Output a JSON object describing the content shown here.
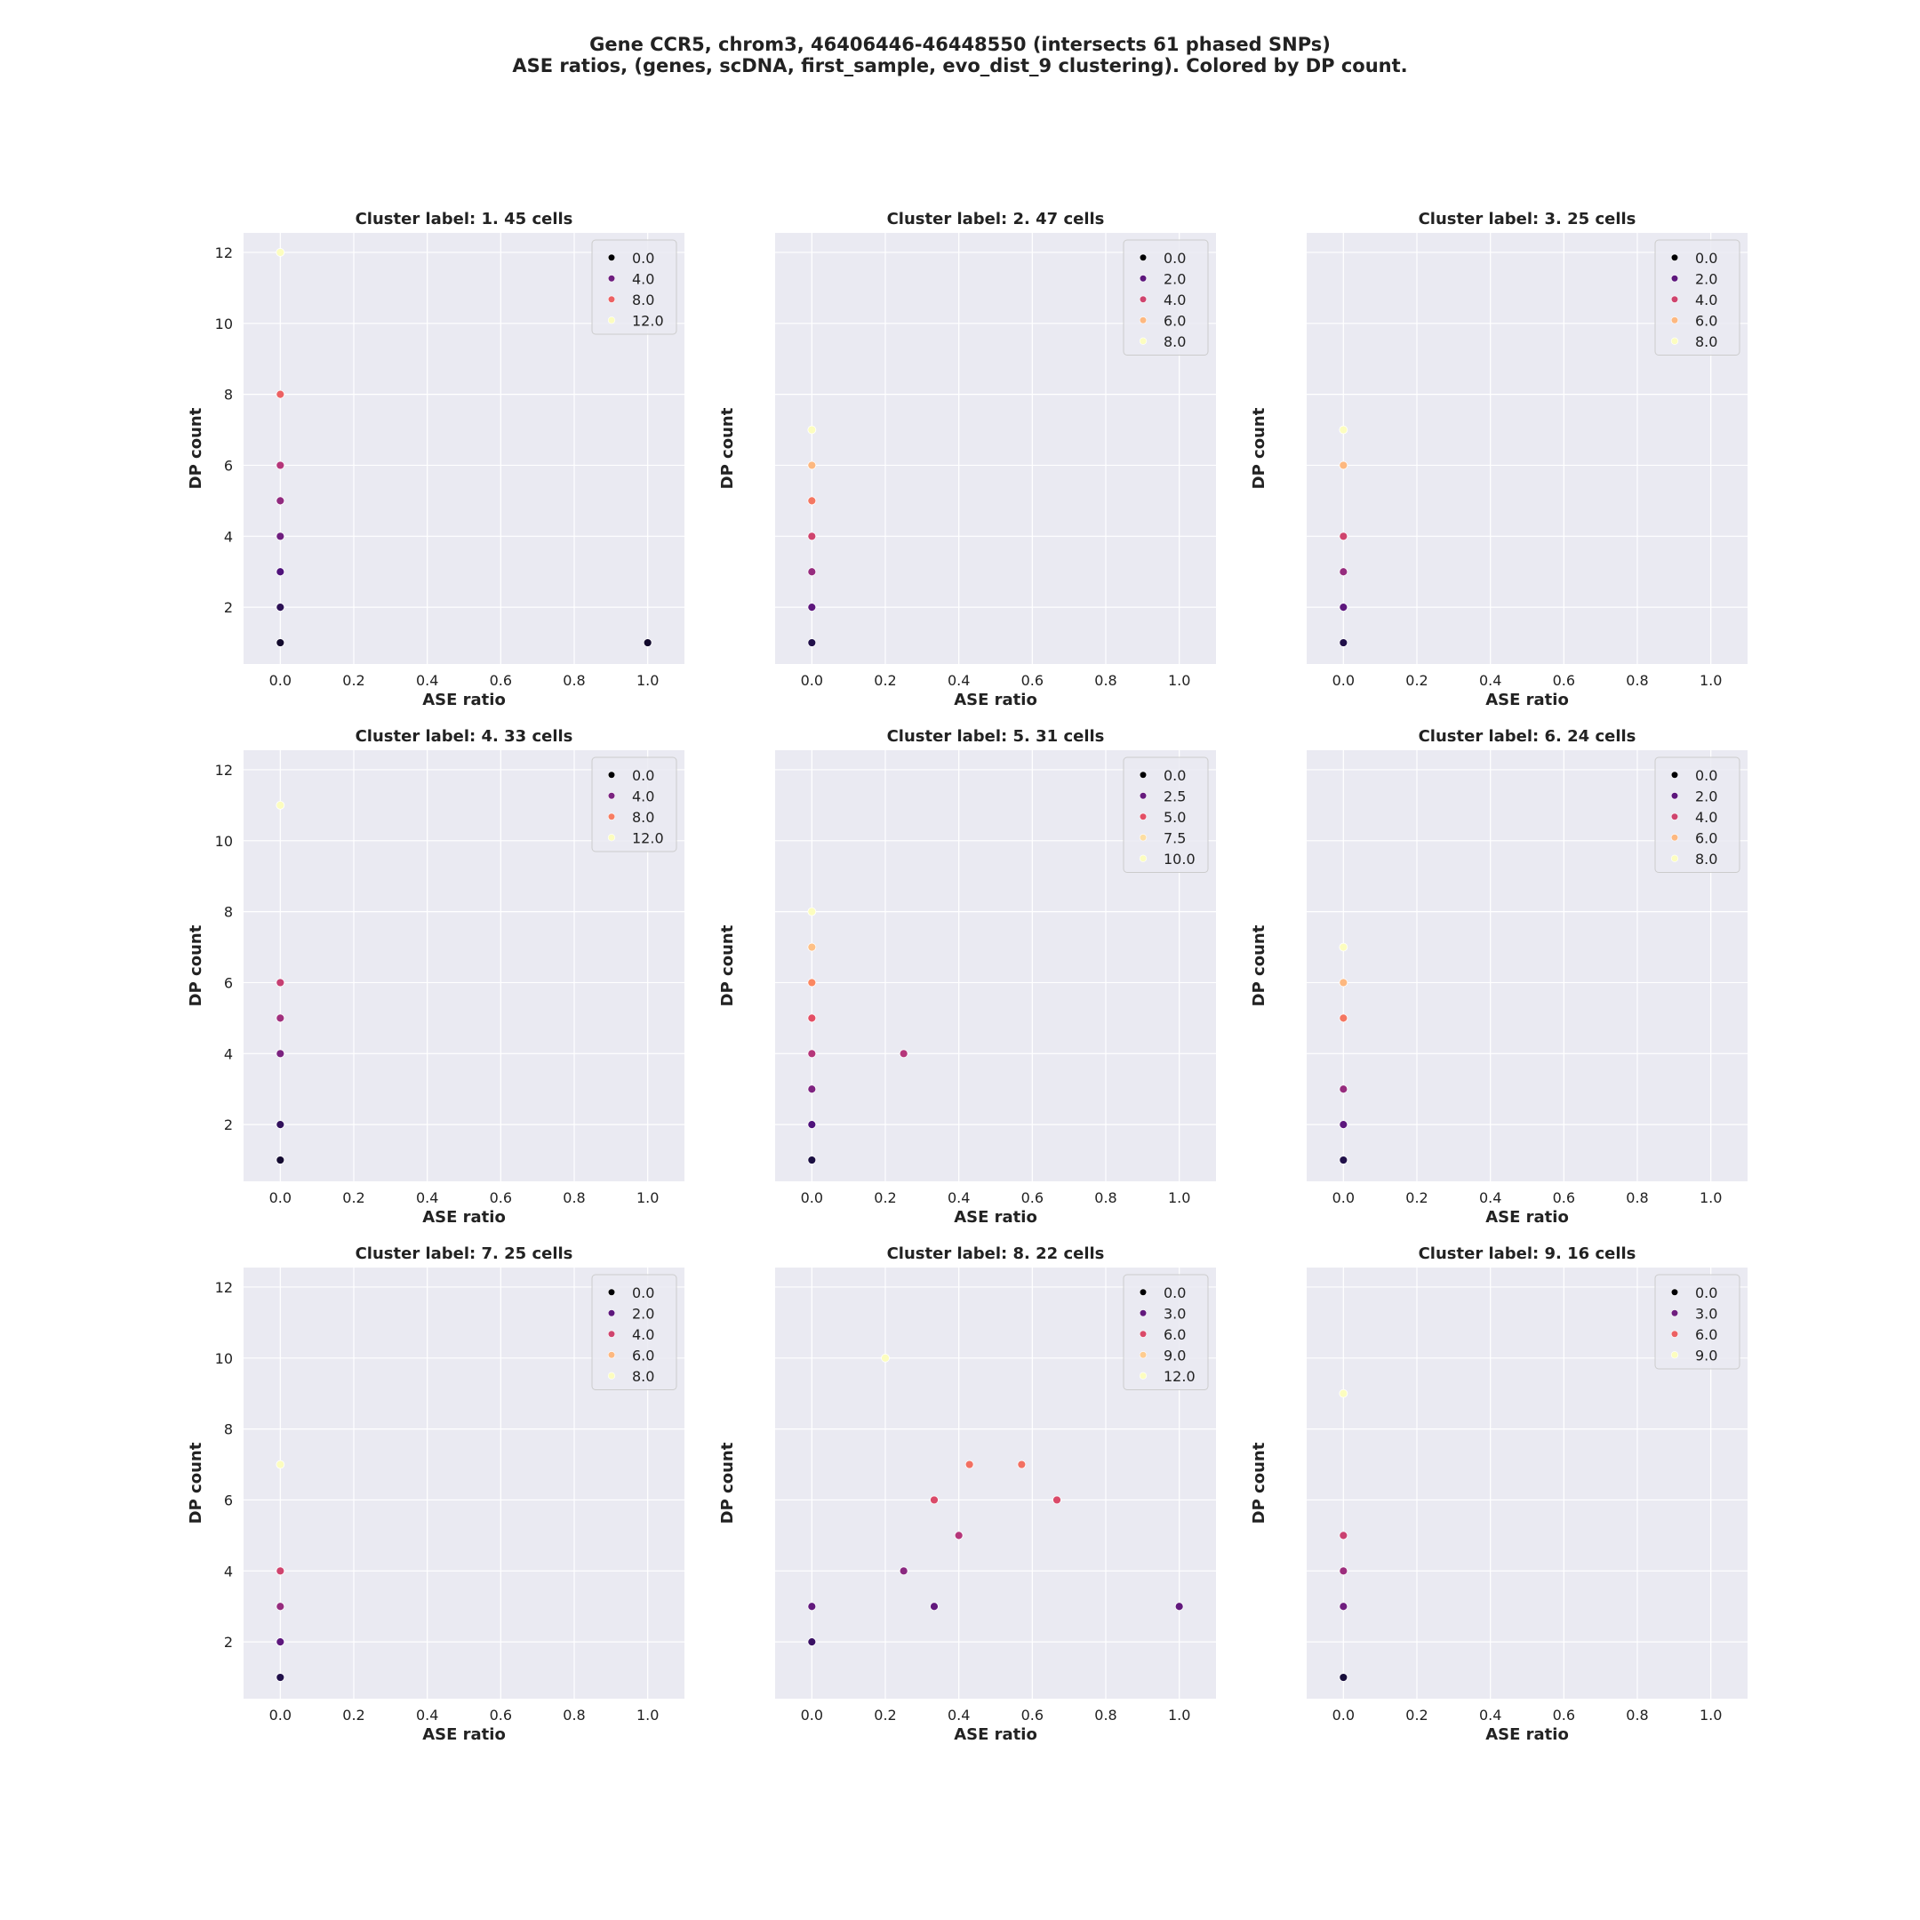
{
  "figure": {
    "title_line1": "Gene CCR5, chrom3, 46406446-46448550 (intersects 61 phased SNPs)",
    "title_line2": "ASE ratios, (genes, scDNA, first_sample, evo_dist_9 clustering). Colored by DP count."
  },
  "style": {
    "plot_background": "#eaeaf2",
    "grid_color": "#ffffff",
    "colormap": "magma"
  },
  "chart_data": [
    {
      "type": "scatter",
      "title": "Cluster label: 1. 45 cells",
      "xlabel": "ASE ratio",
      "ylabel": "DP count",
      "xlim": [
        -0.1,
        1.1
      ],
      "ylim": [
        0.4,
        12.55
      ],
      "xticks": [
        "0.0",
        "0.2",
        "0.4",
        "0.6",
        "0.8",
        "1.0"
      ],
      "yticks": [
        "2",
        "4",
        "6",
        "8",
        "10",
        "12"
      ],
      "y_tick_labels_visible": true,
      "color_max": 12,
      "legend_position": "top-right",
      "legend": [
        {
          "label": "0.0",
          "v": 0
        },
        {
          "label": "4.0",
          "v": 4
        },
        {
          "label": "8.0",
          "v": 8
        },
        {
          "label": "12.0",
          "v": 12
        }
      ],
      "points": [
        {
          "x": 0.0,
          "y": 1
        },
        {
          "x": 0.0,
          "y": 2
        },
        {
          "x": 0.0,
          "y": 3
        },
        {
          "x": 0.0,
          "y": 4
        },
        {
          "x": 0.0,
          "y": 5
        },
        {
          "x": 0.0,
          "y": 6
        },
        {
          "x": 0.0,
          "y": 8
        },
        {
          "x": 0.0,
          "y": 12
        },
        {
          "x": 1.0,
          "y": 1
        }
      ]
    },
    {
      "type": "scatter",
      "title": "Cluster label: 2. 47 cells",
      "xlabel": "ASE ratio",
      "ylabel": "DP count",
      "xlim": [
        -0.1,
        1.1
      ],
      "ylim": [
        0.4,
        12.55
      ],
      "xticks": [
        "0.0",
        "0.2",
        "0.4",
        "0.6",
        "0.8",
        "1.0"
      ],
      "yticks": [
        "2",
        "4",
        "6",
        "8",
        "10",
        "12"
      ],
      "y_tick_labels_visible": false,
      "color_max": 7,
      "legend_position": "top-right",
      "legend": [
        {
          "label": "0.0",
          "v": 0
        },
        {
          "label": "2.0",
          "v": 2
        },
        {
          "label": "4.0",
          "v": 4
        },
        {
          "label": "6.0",
          "v": 6
        },
        {
          "label": "8.0",
          "v": 8
        }
      ],
      "points": [
        {
          "x": 0.0,
          "y": 1
        },
        {
          "x": 0.0,
          "y": 2
        },
        {
          "x": 0.0,
          "y": 3
        },
        {
          "x": 0.0,
          "y": 4
        },
        {
          "x": 0.0,
          "y": 5
        },
        {
          "x": 0.0,
          "y": 6
        },
        {
          "x": 0.0,
          "y": 7
        }
      ]
    },
    {
      "type": "scatter",
      "title": "Cluster label: 3. 25 cells",
      "xlabel": "ASE ratio",
      "ylabel": "DP count",
      "xlim": [
        -0.1,
        1.1
      ],
      "ylim": [
        0.4,
        12.55
      ],
      "xticks": [
        "0.0",
        "0.2",
        "0.4",
        "0.6",
        "0.8",
        "1.0"
      ],
      "yticks": [
        "2",
        "4",
        "6",
        "8",
        "10",
        "12"
      ],
      "y_tick_labels_visible": false,
      "color_max": 7,
      "legend_position": "top-right",
      "legend": [
        {
          "label": "0.0",
          "v": 0
        },
        {
          "label": "2.0",
          "v": 2
        },
        {
          "label": "4.0",
          "v": 4
        },
        {
          "label": "6.0",
          "v": 6
        },
        {
          "label": "8.0",
          "v": 8
        }
      ],
      "points": [
        {
          "x": 0.0,
          "y": 1
        },
        {
          "x": 0.0,
          "y": 2
        },
        {
          "x": 0.0,
          "y": 3
        },
        {
          "x": 0.0,
          "y": 4
        },
        {
          "x": 0.0,
          "y": 6
        },
        {
          "x": 0.0,
          "y": 7
        }
      ]
    },
    {
      "type": "scatter",
      "title": "Cluster label: 4. 33 cells",
      "xlabel": "ASE ratio",
      "ylabel": "DP count",
      "xlim": [
        -0.1,
        1.1
      ],
      "ylim": [
        0.4,
        12.55
      ],
      "xticks": [
        "0.0",
        "0.2",
        "0.4",
        "0.6",
        "0.8",
        "1.0"
      ],
      "yticks": [
        "2",
        "4",
        "6",
        "8",
        "10",
        "12"
      ],
      "y_tick_labels_visible": true,
      "color_max": 11,
      "legend_position": "top-right",
      "legend": [
        {
          "label": "0.0",
          "v": 0
        },
        {
          "label": "4.0",
          "v": 4
        },
        {
          "label": "8.0",
          "v": 8
        },
        {
          "label": "12.0",
          "v": 12
        }
      ],
      "points": [
        {
          "x": 0.0,
          "y": 1
        },
        {
          "x": 0.0,
          "y": 2
        },
        {
          "x": 0.0,
          "y": 4
        },
        {
          "x": 0.0,
          "y": 5
        },
        {
          "x": 0.0,
          "y": 6
        },
        {
          "x": 0.0,
          "y": 11
        }
      ]
    },
    {
      "type": "scatter",
      "title": "Cluster label: 5. 31 cells",
      "xlabel": "ASE ratio",
      "ylabel": "DP count",
      "xlim": [
        -0.1,
        1.1
      ],
      "ylim": [
        0.4,
        12.55
      ],
      "xticks": [
        "0.0",
        "0.2",
        "0.4",
        "0.6",
        "0.8",
        "1.0"
      ],
      "yticks": [
        "2",
        "4",
        "6",
        "8",
        "10",
        "12"
      ],
      "y_tick_labels_visible": false,
      "color_max": 8,
      "legend_position": "top-right",
      "legend": [
        {
          "label": "0.0",
          "v": 0
        },
        {
          "label": "2.5",
          "v": 2.5
        },
        {
          "label": "5.0",
          "v": 5
        },
        {
          "label": "7.5",
          "v": 7.5
        },
        {
          "label": "10.0",
          "v": 10
        }
      ],
      "points": [
        {
          "x": 0.0,
          "y": 1
        },
        {
          "x": 0.0,
          "y": 2
        },
        {
          "x": 0.0,
          "y": 3
        },
        {
          "x": 0.0,
          "y": 4
        },
        {
          "x": 0.0,
          "y": 5
        },
        {
          "x": 0.0,
          "y": 6
        },
        {
          "x": 0.0,
          "y": 7
        },
        {
          "x": 0.0,
          "y": 8
        },
        {
          "x": 0.25,
          "y": 4
        }
      ]
    },
    {
      "type": "scatter",
      "title": "Cluster label: 6. 24 cells",
      "xlabel": "ASE ratio",
      "ylabel": "DP count",
      "xlim": [
        -0.1,
        1.1
      ],
      "ylim": [
        0.4,
        12.55
      ],
      "xticks": [
        "0.0",
        "0.2",
        "0.4",
        "0.6",
        "0.8",
        "1.0"
      ],
      "yticks": [
        "2",
        "4",
        "6",
        "8",
        "10",
        "12"
      ],
      "y_tick_labels_visible": false,
      "color_max": 7,
      "legend_position": "top-right",
      "legend": [
        {
          "label": "0.0",
          "v": 0
        },
        {
          "label": "2.0",
          "v": 2
        },
        {
          "label": "4.0",
          "v": 4
        },
        {
          "label": "6.0",
          "v": 6
        },
        {
          "label": "8.0",
          "v": 8
        }
      ],
      "points": [
        {
          "x": 0.0,
          "y": 1
        },
        {
          "x": 0.0,
          "y": 2
        },
        {
          "x": 0.0,
          "y": 3
        },
        {
          "x": 0.0,
          "y": 5
        },
        {
          "x": 0.0,
          "y": 6
        },
        {
          "x": 0.0,
          "y": 7
        }
      ]
    },
    {
      "type": "scatter",
      "title": "Cluster label: 7. 25 cells",
      "xlabel": "ASE ratio",
      "ylabel": "DP count",
      "xlim": [
        -0.1,
        1.1
      ],
      "ylim": [
        0.4,
        12.55
      ],
      "xticks": [
        "0.0",
        "0.2",
        "0.4",
        "0.6",
        "0.8",
        "1.0"
      ],
      "yticks": [
        "2",
        "4",
        "6",
        "8",
        "10",
        "12"
      ],
      "y_tick_labels_visible": true,
      "color_max": 7,
      "legend_position": "top-right",
      "legend": [
        {
          "label": "0.0",
          "v": 0
        },
        {
          "label": "2.0",
          "v": 2
        },
        {
          "label": "4.0",
          "v": 4
        },
        {
          "label": "6.0",
          "v": 6
        },
        {
          "label": "8.0",
          "v": 8
        }
      ],
      "points": [
        {
          "x": 0.0,
          "y": 1
        },
        {
          "x": 0.0,
          "y": 2
        },
        {
          "x": 0.0,
          "y": 3
        },
        {
          "x": 0.0,
          "y": 4
        },
        {
          "x": 0.0,
          "y": 7
        }
      ]
    },
    {
      "type": "scatter",
      "title": "Cluster label: 8. 22 cells",
      "xlabel": "ASE ratio",
      "ylabel": "DP count",
      "xlim": [
        -0.1,
        1.1
      ],
      "ylim": [
        0.4,
        12.55
      ],
      "xticks": [
        "0.0",
        "0.2",
        "0.4",
        "0.6",
        "0.8",
        "1.0"
      ],
      "yticks": [
        "2",
        "4",
        "6",
        "8",
        "10",
        "12"
      ],
      "y_tick_labels_visible": false,
      "color_max": 10,
      "legend_position": "top-right",
      "legend": [
        {
          "label": "0.0",
          "v": 0
        },
        {
          "label": "3.0",
          "v": 3
        },
        {
          "label": "6.0",
          "v": 6
        },
        {
          "label": "9.0",
          "v": 9
        },
        {
          "label": "12.0",
          "v": 12
        }
      ],
      "points": [
        {
          "x": 0.0,
          "y": 2
        },
        {
          "x": 0.0,
          "y": 3
        },
        {
          "x": 0.2,
          "y": 10
        },
        {
          "x": 0.25,
          "y": 4
        },
        {
          "x": 0.333,
          "y": 3
        },
        {
          "x": 0.333,
          "y": 6
        },
        {
          "x": 0.4,
          "y": 5
        },
        {
          "x": 0.429,
          "y": 7
        },
        {
          "x": 0.571,
          "y": 7
        },
        {
          "x": 0.667,
          "y": 6
        },
        {
          "x": 1.0,
          "y": 3
        }
      ]
    },
    {
      "type": "scatter",
      "title": "Cluster label: 9. 16 cells",
      "xlabel": "ASE ratio",
      "ylabel": "DP count",
      "xlim": [
        -0.1,
        1.1
      ],
      "ylim": [
        0.4,
        12.55
      ],
      "xticks": [
        "0.0",
        "0.2",
        "0.4",
        "0.6",
        "0.8",
        "1.0"
      ],
      "yticks": [
        "2",
        "4",
        "6",
        "8",
        "10",
        "12"
      ],
      "y_tick_labels_visible": false,
      "color_max": 9,
      "legend_position": "top-right",
      "legend": [
        {
          "label": "0.0",
          "v": 0
        },
        {
          "label": "3.0",
          "v": 3
        },
        {
          "label": "6.0",
          "v": 6
        },
        {
          "label": "9.0",
          "v": 9
        }
      ],
      "points": [
        {
          "x": 0.0,
          "y": 1
        },
        {
          "x": 0.0,
          "y": 3
        },
        {
          "x": 0.0,
          "y": 4
        },
        {
          "x": 0.0,
          "y": 5
        },
        {
          "x": 0.0,
          "y": 9
        }
      ]
    }
  ]
}
